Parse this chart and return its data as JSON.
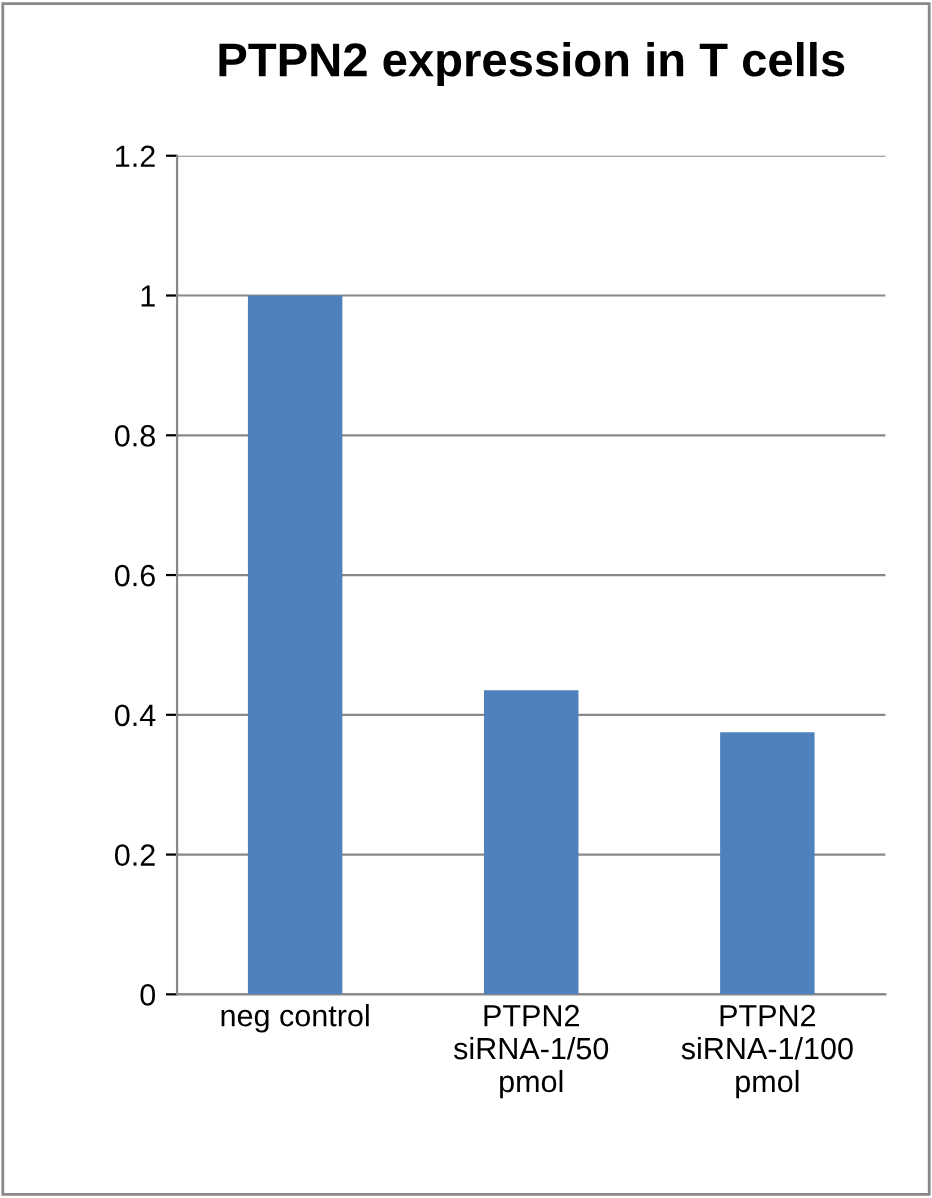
{
  "chart_data": {
    "type": "bar",
    "title": "PTPN2 expression in T cells",
    "categories": [
      "neg control",
      "PTPN2 siRNA-1/50 pmol",
      "PTPN2 siRNA-1/100 pmol"
    ],
    "values": [
      1.0,
      0.435,
      0.375
    ],
    "color": "#4f81bd",
    "ylim": [
      0,
      1.2
    ],
    "yticks": [
      {
        "value": 0,
        "label": "0"
      },
      0.2,
      0.4,
      0.6,
      0.8,
      {
        "value": 1,
        "label": "1"
      },
      1.2
    ],
    "grid": "y",
    "legend": false
  }
}
